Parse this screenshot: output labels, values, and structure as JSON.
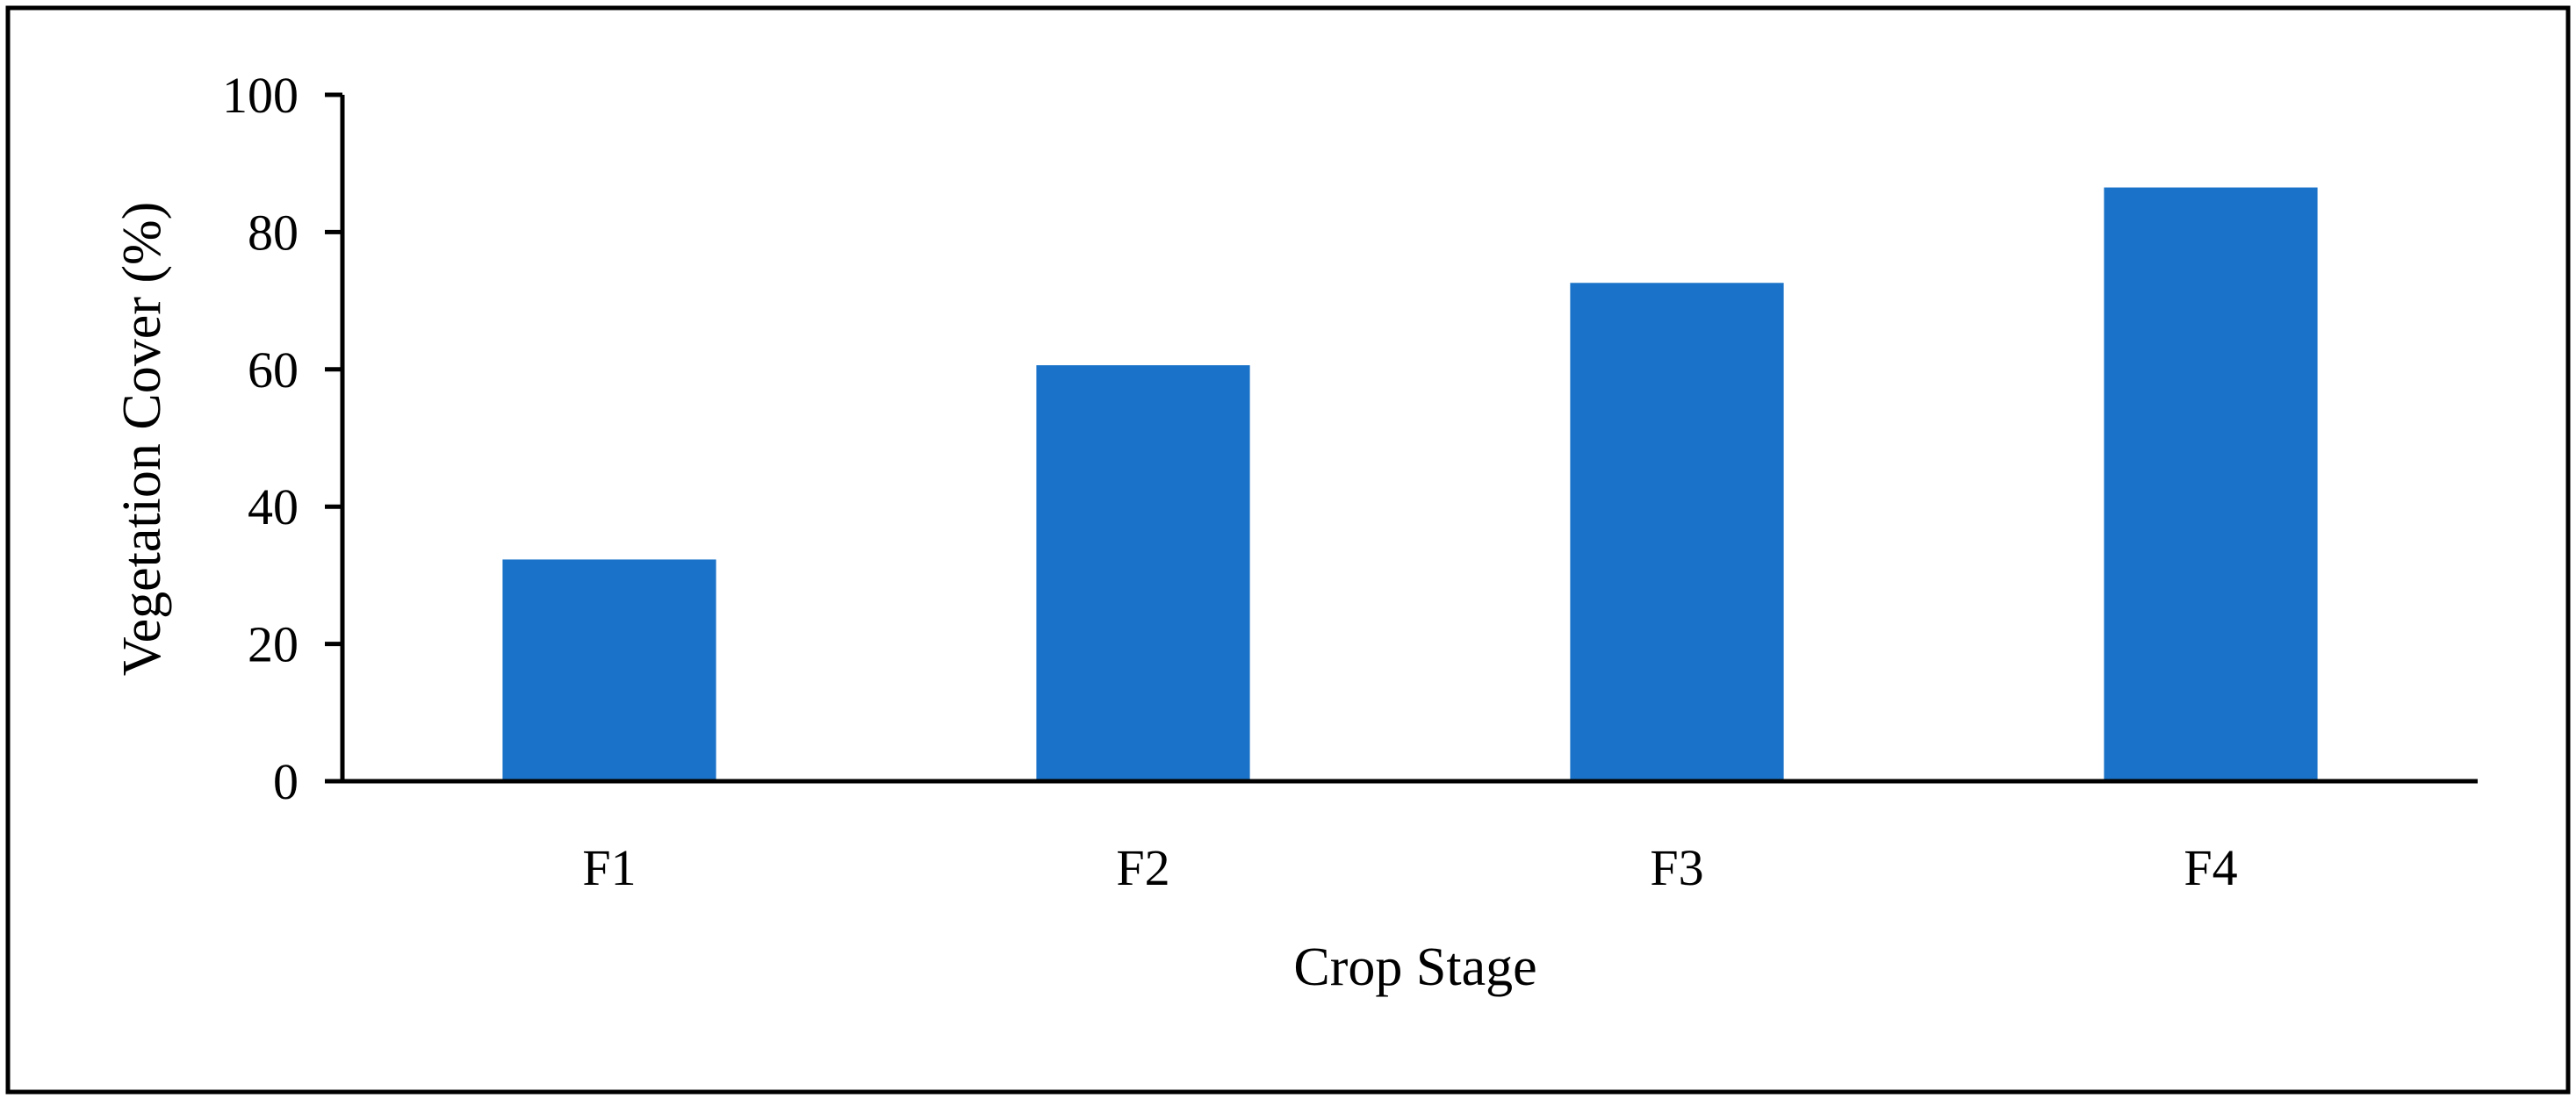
{
  "chart_data": {
    "type": "bar",
    "title": "",
    "xlabel": "Crop Stage",
    "ylabel": "Vegetation Cover (%)",
    "categories": [
      "F1",
      "F2",
      "F3",
      "F4"
    ],
    "series": [
      {
        "values": [
          32.3,
          60.6,
          72.6,
          86.5
        ]
      }
    ],
    "ylim": [
      0,
      100
    ],
    "yticks": [
      0,
      20,
      40,
      60,
      80,
      100
    ],
    "grid": false,
    "legend": "none",
    "bar_color": "#1a73c8",
    "axis_color": "#000000",
    "frame_color": "#000000"
  }
}
